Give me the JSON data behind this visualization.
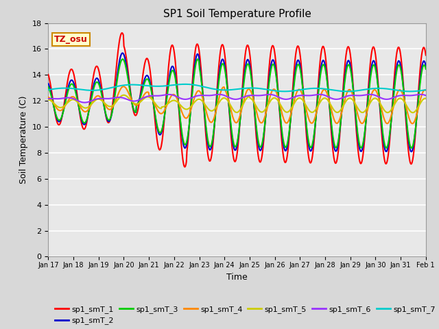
{
  "title": "SP1 Soil Temperature Profile",
  "xlabel": "Time",
  "ylabel": "Soil Temperature (C)",
  "annotation": "TZ_osu",
  "ylim": [
    0,
    18
  ],
  "yticks": [
    0,
    2,
    4,
    6,
    8,
    10,
    12,
    14,
    16,
    18
  ],
  "xtick_labels": [
    "Jan 17",
    "Jan 18",
    "Jan 19",
    "Jan 20",
    "Jan 21",
    "Jan 22",
    "Jan 23",
    "Jan 24",
    "Jan 25",
    "Jan 26",
    "Jan 27",
    "Jan 28",
    "Jan 29",
    "Jan 30",
    "Jan 31",
    "Feb 1"
  ],
  "series_colors": {
    "sp1_smT_1": "#ff0000",
    "sp1_smT_2": "#0000cc",
    "sp1_smT_3": "#00cc00",
    "sp1_smT_4": "#ff8800",
    "sp1_smT_5": "#cccc00",
    "sp1_smT_6": "#9933ff",
    "sp1_smT_7": "#00cccc"
  },
  "fig_bg": "#d8d8d8",
  "plot_bg": "#e8e8e8",
  "grid_color": "#ffffff",
  "annotation_bg": "#ffffcc",
  "annotation_border": "#cc8800"
}
